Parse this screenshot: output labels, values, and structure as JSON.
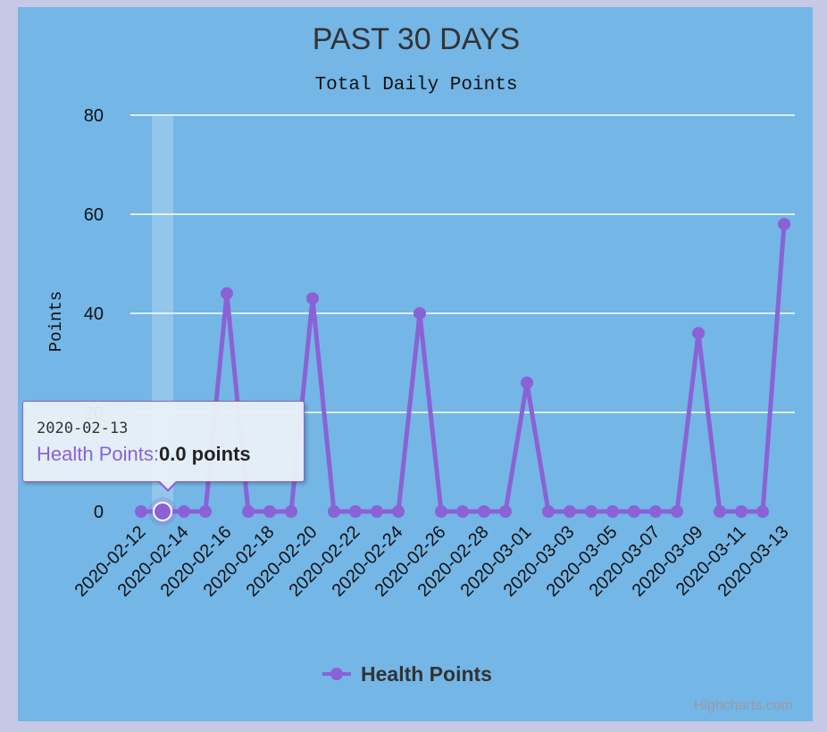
{
  "chart_data": {
    "type": "line",
    "title": "PAST 30 DAYS",
    "subtitle": "Total Daily Points",
    "xlabel": "",
    "ylabel": "Points",
    "ylim": [
      0,
      80
    ],
    "y_ticks": [
      0,
      20,
      40,
      60,
      80
    ],
    "grid": true,
    "legend_position": "bottom-center",
    "x": [
      "2020-02-12",
      "2020-02-13",
      "2020-02-14",
      "2020-02-15",
      "2020-02-16",
      "2020-02-17",
      "2020-02-18",
      "2020-02-19",
      "2020-02-20",
      "2020-02-21",
      "2020-02-22",
      "2020-02-23",
      "2020-02-24",
      "2020-02-25",
      "2020-02-26",
      "2020-02-27",
      "2020-02-28",
      "2020-02-29",
      "2020-03-01",
      "2020-03-02",
      "2020-03-03",
      "2020-03-04",
      "2020-03-05",
      "2020-03-06",
      "2020-03-07",
      "2020-03-08",
      "2020-03-09",
      "2020-03-10",
      "2020-03-11",
      "2020-03-12",
      "2020-03-13"
    ],
    "x_tick_labels": [
      "2020-02-12",
      "2020-02-14",
      "2020-02-16",
      "2020-02-18",
      "2020-02-20",
      "2020-02-22",
      "2020-02-24",
      "2020-02-26",
      "2020-02-28",
      "2020-03-01",
      "2020-03-03",
      "2020-03-05",
      "2020-03-07",
      "2020-03-09",
      "2020-03-11",
      "2020-03-13"
    ],
    "series": [
      {
        "name": "Health Points",
        "color": "#8a62d6",
        "values": [
          0,
          0,
          0,
          0,
          44,
          0,
          0,
          0,
          43,
          0,
          0,
          0,
          0,
          40,
          0,
          0,
          0,
          0,
          26,
          0,
          0,
          0,
          0,
          0,
          0,
          0,
          36,
          0,
          0,
          0,
          58
        ]
      }
    ]
  },
  "colors": {
    "plot_background": "#74b6e6",
    "page_background": "#c5c9e6",
    "series": "#8a62d6",
    "gridline": "#ffffff"
  },
  "tooltip": {
    "date": "2020-02-13",
    "series_label": "Health Points:",
    "value_text": "0.0 points",
    "highlighted_index": 1
  },
  "credits": "Highcharts.com"
}
